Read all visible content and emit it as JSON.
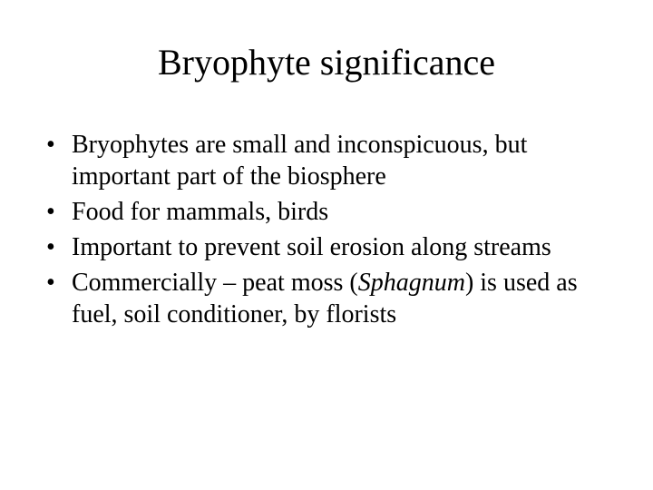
{
  "slide": {
    "title": "Bryophyte significance",
    "bullets": [
      {
        "text": "Bryophytes are small and inconspicuous, but important part of the biosphere"
      },
      {
        "text": "Food for mammals, birds"
      },
      {
        "text": "Important to prevent soil erosion along streams"
      },
      {
        "prefix": "Commercially – peat moss (",
        "italic": "Sphagnum",
        "suffix": ") is used as fuel, soil conditioner, by florists"
      }
    ],
    "colors": {
      "background": "#ffffff",
      "text": "#000000"
    },
    "typography": {
      "family": "Times New Roman",
      "title_fontsize": 40,
      "body_fontsize": 28
    }
  }
}
